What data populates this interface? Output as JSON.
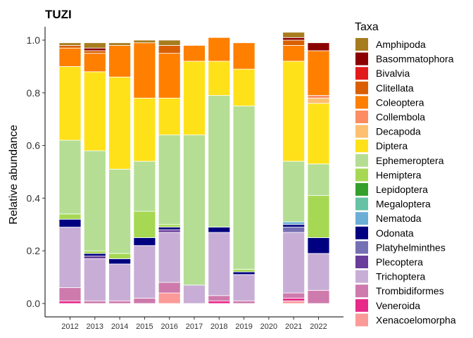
{
  "chart_data": {
    "type": "bar",
    "stacked": true,
    "title": "TUZI",
    "xlabel": "",
    "ylabel": "Relative abundance",
    "ylim": [
      0,
      1.0
    ],
    "yticks": [
      "0.0",
      "0.2",
      "0.4",
      "0.6",
      "0.8",
      "1.0"
    ],
    "categories": [
      "2012",
      "2013",
      "2014",
      "2015",
      "2016",
      "2017",
      "2018",
      "2019",
      "2020",
      "2021",
      "2022"
    ],
    "legend_title": "Taxa",
    "legend_position": "right",
    "series": [
      {
        "name": "Xenacoelomorpha",
        "color": "#FB9A99",
        "values": [
          0,
          0,
          0,
          0,
          0.04,
          0,
          0,
          0,
          0,
          0.01,
          0
        ]
      },
      {
        "name": "Veneroida",
        "color": "#E7298A",
        "values": [
          0.01,
          0,
          0,
          0,
          0,
          0,
          0.01,
          0,
          0,
          0.01,
          0
        ]
      },
      {
        "name": "Trombidiformes",
        "color": "#CE7AAD",
        "values": [
          0.05,
          0.01,
          0.01,
          0.02,
          0.04,
          0,
          0.02,
          0.01,
          0,
          0.02,
          0.05
        ]
      },
      {
        "name": "Trichoptera",
        "color": "#C8AED6",
        "values": [
          0.23,
          0.16,
          0.14,
          0.2,
          0.19,
          0.07,
          0.24,
          0.1,
          0,
          0.23,
          0.14
        ]
      },
      {
        "name": "Plecoptera",
        "color": "#6A3D9A",
        "values": [
          0,
          0.01,
          0,
          0,
          0.01,
          0,
          0,
          0,
          0,
          0,
          0
        ]
      },
      {
        "name": "Platyhelminthes",
        "color": "#7570B3",
        "values": [
          0,
          0,
          0,
          0,
          0,
          0,
          0,
          0,
          0,
          0.02,
          0
        ]
      },
      {
        "name": "Odonata",
        "color": "#000080",
        "values": [
          0.03,
          0.01,
          0.02,
          0.03,
          0.01,
          0,
          0.02,
          0.01,
          0,
          0.01,
          0.06
        ]
      },
      {
        "name": "Nematoda",
        "color": "#6BAED6",
        "values": [
          0,
          0,
          0,
          0,
          0,
          0,
          0,
          0,
          0,
          0.01,
          0
        ]
      },
      {
        "name": "Megaloptera",
        "color": "#66C2A5",
        "values": [
          0,
          0,
          0,
          0,
          0,
          0,
          0,
          0,
          0,
          0,
          0
        ]
      },
      {
        "name": "Lepidoptera",
        "color": "#33A02C",
        "values": [
          0,
          0,
          0,
          0,
          0,
          0,
          0,
          0,
          0,
          0,
          0
        ]
      },
      {
        "name": "Hemiptera",
        "color": "#A6D854",
        "values": [
          0.02,
          0.01,
          0.02,
          0.1,
          0.01,
          0,
          0,
          0.01,
          0,
          0,
          0.16
        ]
      },
      {
        "name": "Ephemeroptera",
        "color": "#B5DE94",
        "values": [
          0.28,
          0.38,
          0.32,
          0.19,
          0.34,
          0.57,
          0.5,
          0.62,
          0,
          0.23,
          0.12
        ]
      },
      {
        "name": "Diptera",
        "color": "#FFE119",
        "values": [
          0.28,
          0.3,
          0.35,
          0.24,
          0.14,
          0.28,
          0.13,
          0.14,
          0,
          0.38,
          0.23
        ]
      },
      {
        "name": "Decapoda",
        "color": "#FDC070",
        "values": [
          0,
          0,
          0,
          0,
          0,
          0,
          0,
          0,
          0,
          0,
          0.02
        ]
      },
      {
        "name": "Collembola",
        "color": "#FC8D62",
        "values": [
          0,
          0,
          0,
          0,
          0,
          0,
          0,
          0,
          0,
          0,
          0.01
        ]
      },
      {
        "name": "Coleoptera",
        "color": "#FF7F00",
        "values": [
          0.07,
          0.07,
          0.12,
          0.21,
          0.17,
          0.06,
          0.09,
          0.1,
          0,
          0.06,
          0.17
        ]
      },
      {
        "name": "Clitellata",
        "color": "#D95F02",
        "values": [
          0.01,
          0.01,
          0,
          0,
          0.03,
          0,
          0,
          0,
          0,
          0.02,
          0
        ]
      },
      {
        "name": "Bivalvia",
        "color": "#E31A1C",
        "values": [
          0,
          0,
          0,
          0,
          0,
          0,
          0,
          0,
          0,
          0,
          0
        ]
      },
      {
        "name": "Basommatophora",
        "color": "#8B0000",
        "values": [
          0,
          0.01,
          0,
          0,
          0,
          0,
          0,
          0,
          0,
          0.01,
          0.03
        ]
      },
      {
        "name": "Amphipoda",
        "color": "#A67C1E",
        "values": [
          0.01,
          0.02,
          0.01,
          0.01,
          0.02,
          0,
          0,
          0,
          0,
          0.02,
          0
        ]
      }
    ],
    "legend_order": [
      "Amphipoda",
      "Basommatophora",
      "Bivalvia",
      "Clitellata",
      "Coleoptera",
      "Collembola",
      "Decapoda",
      "Diptera",
      "Ephemeroptera",
      "Hemiptera",
      "Lepidoptera",
      "Megaloptera",
      "Nematoda",
      "Odonata",
      "Platyhelminthes",
      "Plecoptera",
      "Trichoptera",
      "Trombidiformes",
      "Veneroida",
      "Xenacoelomorpha"
    ]
  }
}
